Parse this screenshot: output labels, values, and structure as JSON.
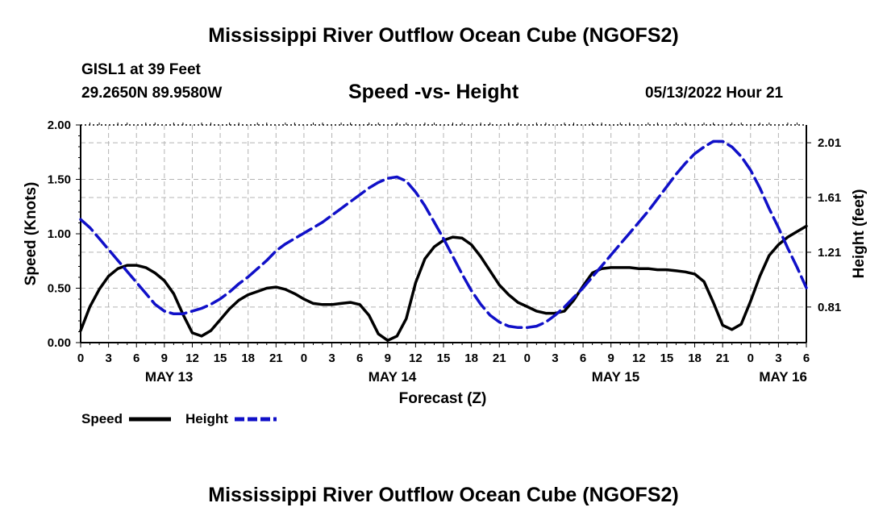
{
  "header": {
    "title": "Mississippi River Outflow Ocean Cube (NGOFS2)",
    "station": "GISL1 at 39 Feet",
    "location": "29.2650N  89.9580W",
    "subtitle": "Speed -vs- Height",
    "datetime": "05/13/2022 Hour 21"
  },
  "footer": {
    "title": "Mississippi River Outflow Ocean Cube (NGOFS2)"
  },
  "colors": {
    "speed": "#000000",
    "height": "#1010c8",
    "grid": "#b4b4b4"
  },
  "chart_data": {
    "type": "line",
    "title": "Speed -vs- Height",
    "xlabel": "Forecast (Z)",
    "ylabel": "Speed (Knots)",
    "y2label": "Height (feet)",
    "xlim": [
      0,
      78
    ],
    "ylim": [
      0,
      2
    ],
    "y2lim": [
      0.55,
      2.14
    ],
    "x_tick_labels": [
      "0",
      "3",
      "6",
      "9",
      "12",
      "15",
      "18",
      "21",
      "0",
      "3",
      "6",
      "9",
      "12",
      "15",
      "18",
      "21",
      "0",
      "3",
      "6",
      "9",
      "12",
      "15",
      "18",
      "21",
      "0",
      "3",
      "6"
    ],
    "y_ticks": [
      "0.00",
      "0.50",
      "1.00",
      "1.50",
      "2.00"
    ],
    "y2_ticks": [
      "0.81",
      "1.21",
      "1.61",
      "2.01"
    ],
    "day_labels": [
      {
        "label": "MAY 13",
        "x": 9.5
      },
      {
        "label": "MAY 14",
        "x": 33.5
      },
      {
        "label": "MAY 15",
        "x": 57.5
      },
      {
        "label": "MAY 16",
        "x": 75.5
      }
    ],
    "grid": true,
    "legend_position": "bottom-left",
    "series": [
      {
        "name": "Speed",
        "axis": "left",
        "style": "solid",
        "x": [
          0,
          1,
          2,
          3,
          4,
          5,
          6,
          7,
          8,
          9,
          10,
          11,
          12,
          13,
          14,
          15,
          16,
          17,
          18,
          19,
          20,
          21,
          22,
          23,
          24,
          25,
          26,
          27,
          28,
          29,
          30,
          31,
          32,
          33,
          34,
          35,
          36,
          37,
          38,
          39,
          40,
          41,
          42,
          43,
          44,
          45,
          46,
          47,
          48,
          49,
          50,
          51,
          52,
          53,
          54,
          55,
          56,
          57,
          58,
          59,
          60,
          61,
          62,
          63,
          64,
          65,
          66,
          67,
          68,
          69,
          70,
          71,
          72,
          73,
          74,
          75,
          76,
          77,
          78
        ],
        "values": [
          0.11,
          0.33,
          0.49,
          0.61,
          0.68,
          0.71,
          0.71,
          0.69,
          0.64,
          0.57,
          0.45,
          0.26,
          0.09,
          0.06,
          0.11,
          0.21,
          0.31,
          0.39,
          0.44,
          0.47,
          0.5,
          0.51,
          0.49,
          0.45,
          0.4,
          0.36,
          0.35,
          0.35,
          0.36,
          0.37,
          0.35,
          0.25,
          0.08,
          0.02,
          0.06,
          0.22,
          0.55,
          0.77,
          0.88,
          0.94,
          0.97,
          0.96,
          0.9,
          0.79,
          0.66,
          0.53,
          0.44,
          0.37,
          0.33,
          0.29,
          0.27,
          0.27,
          0.29,
          0.39,
          0.52,
          0.64,
          0.68,
          0.69,
          0.69,
          0.69,
          0.68,
          0.68,
          0.67,
          0.67,
          0.66,
          0.65,
          0.63,
          0.56,
          0.37,
          0.16,
          0.12,
          0.17,
          0.38,
          0.61,
          0.8,
          0.9,
          0.97,
          1.02,
          1.07
        ]
      },
      {
        "name": "Height",
        "axis": "right",
        "style": "dashed",
        "x": [
          0,
          1,
          2,
          3,
          4,
          5,
          6,
          7,
          8,
          9,
          10,
          11,
          12,
          13,
          14,
          15,
          16,
          17,
          18,
          19,
          20,
          21,
          22,
          23,
          24,
          25,
          26,
          27,
          28,
          29,
          30,
          31,
          32,
          33,
          34,
          35,
          36,
          37,
          38,
          39,
          40,
          41,
          42,
          43,
          44,
          45,
          46,
          47,
          48,
          49,
          50,
          51,
          52,
          53,
          54,
          55,
          56,
          57,
          58,
          59,
          60,
          61,
          62,
          63,
          64,
          65,
          66,
          67,
          68,
          69,
          70,
          71,
          72,
          73,
          74,
          75,
          76,
          77,
          78
        ],
        "values": [
          1.45,
          1.39,
          1.31,
          1.23,
          1.15,
          1.07,
          0.99,
          0.91,
          0.83,
          0.78,
          0.76,
          0.76,
          0.78,
          0.8,
          0.83,
          0.87,
          0.92,
          0.98,
          1.03,
          1.09,
          1.15,
          1.22,
          1.27,
          1.31,
          1.35,
          1.39,
          1.43,
          1.48,
          1.53,
          1.58,
          1.63,
          1.68,
          1.72,
          1.75,
          1.76,
          1.73,
          1.65,
          1.55,
          1.43,
          1.31,
          1.18,
          1.05,
          0.93,
          0.83,
          0.75,
          0.7,
          0.67,
          0.66,
          0.66,
          0.67,
          0.7,
          0.75,
          0.81,
          0.88,
          0.95,
          1.03,
          1.11,
          1.19,
          1.27,
          1.35,
          1.43,
          1.51,
          1.6,
          1.69,
          1.78,
          1.86,
          1.93,
          1.98,
          2.02,
          2.02,
          1.98,
          1.91,
          1.81,
          1.68,
          1.53,
          1.39,
          1.24,
          1.1,
          0.95
        ]
      }
    ]
  }
}
